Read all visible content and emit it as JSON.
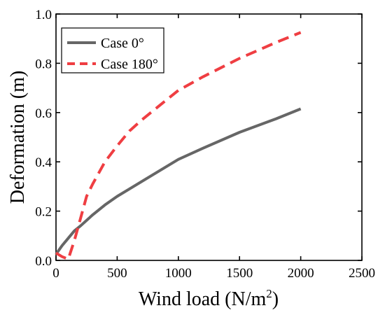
{
  "chart_data": {
    "type": "line",
    "title": "",
    "xlabel": "Wind load (N/m",
    "xlabel_superscript": "2",
    "xlabel_suffix": ")",
    "ylabel": "Deformation (m)",
    "xlim": [
      0,
      2500
    ],
    "ylim": [
      0,
      1.0
    ],
    "xticks": [
      0,
      500,
      1000,
      1500,
      2000,
      2500
    ],
    "yticks": [
      0.0,
      0.2,
      0.4,
      0.6,
      0.8,
      1.0
    ],
    "xtick_labels": [
      "0",
      "500",
      "1000",
      "1500",
      "2000",
      "2500"
    ],
    "ytick_labels": [
      "0.0",
      "0.2",
      "0.4",
      "0.6",
      "0.8",
      "1.0"
    ],
    "grid": false,
    "legend_position": "top-left",
    "series": [
      {
        "name": "Case 0°",
        "color": "#666666",
        "dash": "solid",
        "x": [
          0,
          50,
          100,
          150,
          200,
          300,
          400,
          500,
          600,
          800,
          1000,
          1200,
          1500,
          1800,
          2000
        ],
        "y": [
          0.025,
          0.06,
          0.09,
          0.12,
          0.14,
          0.185,
          0.225,
          0.26,
          0.29,
          0.35,
          0.41,
          0.455,
          0.52,
          0.575,
          0.615
        ]
      },
      {
        "name": "Case 180°",
        "color": "#ef3e42",
        "dash": "dashed",
        "x": [
          0,
          50,
          100,
          150,
          200,
          250,
          300,
          400,
          500,
          600,
          700,
          800,
          1000,
          1200,
          1500,
          1800,
          2000
        ],
        "y": [
          0.03,
          0.015,
          0.005,
          0.08,
          0.17,
          0.26,
          0.31,
          0.4,
          0.465,
          0.525,
          0.57,
          0.61,
          0.69,
          0.745,
          0.82,
          0.885,
          0.925
        ]
      }
    ]
  }
}
